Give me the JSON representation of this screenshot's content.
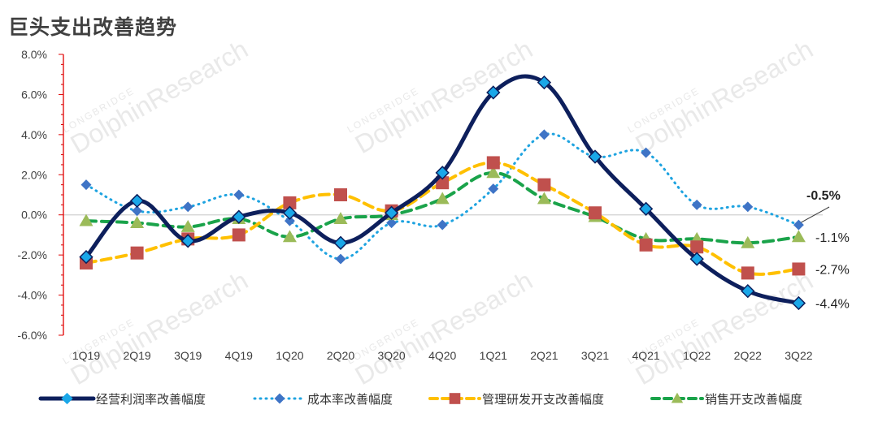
{
  "chart_data": {
    "type": "line",
    "title": "巨头支出改善趋势",
    "categories": [
      "1Q19",
      "2Q19",
      "3Q19",
      "4Q19",
      "1Q20",
      "2Q20",
      "3Q20",
      "4Q20",
      "1Q21",
      "2Q21",
      "3Q21",
      "4Q21",
      "1Q22",
      "2Q22",
      "3Q22"
    ],
    "ylim": [
      -6.0,
      8.0
    ],
    "yticks": [
      "-6.0%",
      "-4.0%",
      "-2.0%",
      "0.0%",
      "2.0%",
      "4.0%",
      "6.0%",
      "8.0%"
    ],
    "ytick_values": [
      -6,
      -4,
      -2,
      0,
      2,
      4,
      6,
      8
    ],
    "series": [
      {
        "name": "经营利润率改善幅度",
        "color": "#0d1f5c",
        "marker": "diamond",
        "marker_color": "#1aa7e8",
        "style": "solid",
        "values": [
          -2.1,
          0.7,
          -1.3,
          -0.1,
          0.1,
          -1.4,
          0.1,
          2.1,
          6.1,
          6.6,
          2.9,
          0.3,
          -2.2,
          -3.8,
          -4.4
        ]
      },
      {
        "name": "成本率改善幅度",
        "color": "#1ea3e0",
        "marker": "diamond",
        "marker_color": "#3f74c6",
        "style": "dotted",
        "values": [
          1.5,
          0.2,
          0.4,
          1.0,
          -0.3,
          -2.2,
          -0.4,
          -0.5,
          1.3,
          4.0,
          2.9,
          3.1,
          0.5,
          0.4,
          -0.5
        ]
      },
      {
        "name": "管理研发开支改善幅度",
        "color": "#ffc000",
        "marker": "square",
        "marker_color": "#c0504d",
        "style": "dashed",
        "values": [
          -2.4,
          -1.9,
          -1.2,
          -1.0,
          0.6,
          1.0,
          0.2,
          1.6,
          2.6,
          1.5,
          0.1,
          -1.5,
          -1.6,
          -2.9,
          -2.7
        ]
      },
      {
        "name": "销售开支改善幅度",
        "color": "#1aa34a",
        "marker": "triangle",
        "marker_color": "#9bbb59",
        "style": "dashed",
        "values": [
          -0.3,
          -0.4,
          -0.6,
          -0.2,
          -1.1,
          -0.2,
          0.0,
          0.8,
          2.1,
          0.8,
          -0.1,
          -1.2,
          -1.2,
          -1.4,
          -1.1
        ]
      }
    ],
    "end_labels": [
      "-0.5%",
      "-1.1%",
      "-2.7%",
      "-4.4%"
    ],
    "legend_position": "bottom",
    "grid": false
  },
  "watermark": {
    "brand": "LONGBRIDGE",
    "name": "DolphinResearch"
  }
}
